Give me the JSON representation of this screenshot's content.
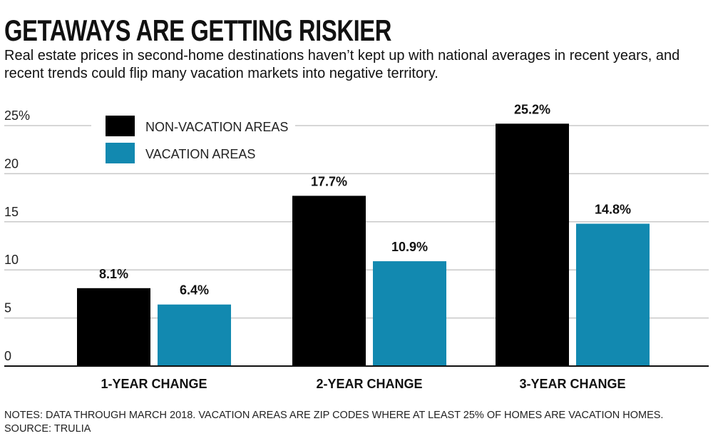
{
  "colors": {
    "non_vacation": "#000000",
    "vacation": "#1289b0",
    "grid": "#c8c8c8",
    "axis": "#111111"
  },
  "notes": {
    "line1": "NOTES: DATA THROUGH MARCH 2018. VACATION AREAS ARE ZIP CODES WHERE AT LEAST 25% OF HOMES ARE VACATION HOMES.",
    "line2": "SOURCE: TRULIA"
  },
  "chart_data": {
    "type": "bar",
    "title": "GETAWAYS ARE GETTING RISKIER",
    "subtitle": "Real estate prices in second-home destinations haven’t kept up with national averages in recent years, and recent trends could flip many vacation markets into negative territory.",
    "categories": [
      "1-YEAR CHANGE",
      "2-YEAR CHANGE",
      "3-YEAR CHANGE"
    ],
    "series": [
      {
        "name": "NON-VACATION AREAS",
        "values": [
          8.1,
          17.7,
          25.2
        ],
        "labels": [
          "8.1%",
          "17.7%",
          "25.2%"
        ]
      },
      {
        "name": "VACATION AREAS",
        "values": [
          6.4,
          10.9,
          14.8
        ],
        "labels": [
          "6.4%",
          "10.9%",
          "14.8%"
        ]
      }
    ],
    "yticks": [
      {
        "value": 0,
        "label": "0"
      },
      {
        "value": 5,
        "label": "5"
      },
      {
        "value": 10,
        "label": "10"
      },
      {
        "value": 15,
        "label": "15"
      },
      {
        "value": 20,
        "label": "20"
      },
      {
        "value": 25,
        "label": "25%"
      }
    ],
    "ylim": [
      0,
      25
    ],
    "xlabel": "",
    "ylabel": "",
    "grid": true,
    "legend_position": "top-left"
  }
}
